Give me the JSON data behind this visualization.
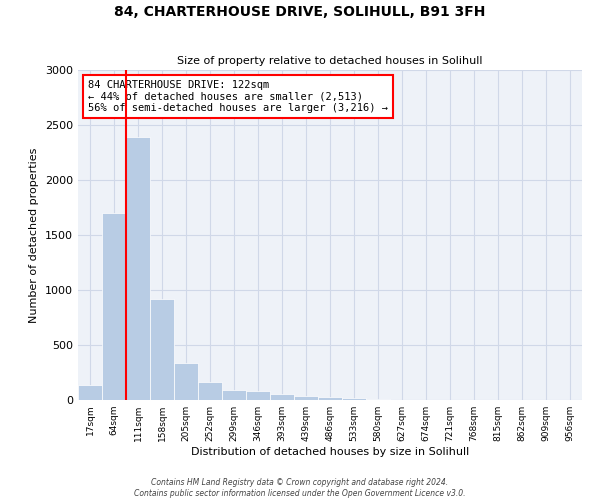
{
  "title": "84, CHARTERHOUSE DRIVE, SOLIHULL, B91 3FH",
  "subtitle": "Size of property relative to detached houses in Solihull",
  "xlabel": "Distribution of detached houses by size in Solihull",
  "ylabel": "Number of detached properties",
  "bin_labels": [
    "17sqm",
    "64sqm",
    "111sqm",
    "158sqm",
    "205sqm",
    "252sqm",
    "299sqm",
    "346sqm",
    "393sqm",
    "439sqm",
    "486sqm",
    "533sqm",
    "580sqm",
    "627sqm",
    "674sqm",
    "721sqm",
    "768sqm",
    "815sqm",
    "862sqm",
    "909sqm",
    "956sqm"
  ],
  "bar_values": [
    140,
    1700,
    2390,
    920,
    340,
    165,
    95,
    80,
    55,
    40,
    25,
    15,
    5,
    3,
    2,
    1,
    1,
    0,
    0,
    0,
    0
  ],
  "bar_color": "#b8cce4",
  "grid_color": "#d0d8e8",
  "background_color": "#eef2f8",
  "annotation_text": "84 CHARTERHOUSE DRIVE: 122sqm\n← 44% of detached houses are smaller (2,513)\n56% of semi-detached houses are larger (3,216) →",
  "annotation_box_color": "white",
  "annotation_box_edge": "red",
  "red_line_color": "red",
  "ylim": [
    0,
    3000
  ],
  "yticks": [
    0,
    500,
    1000,
    1500,
    2000,
    2500,
    3000
  ],
  "footer_line1": "Contains HM Land Registry data © Crown copyright and database right 2024.",
  "footer_line2": "Contains public sector information licensed under the Open Government Licence v3.0."
}
